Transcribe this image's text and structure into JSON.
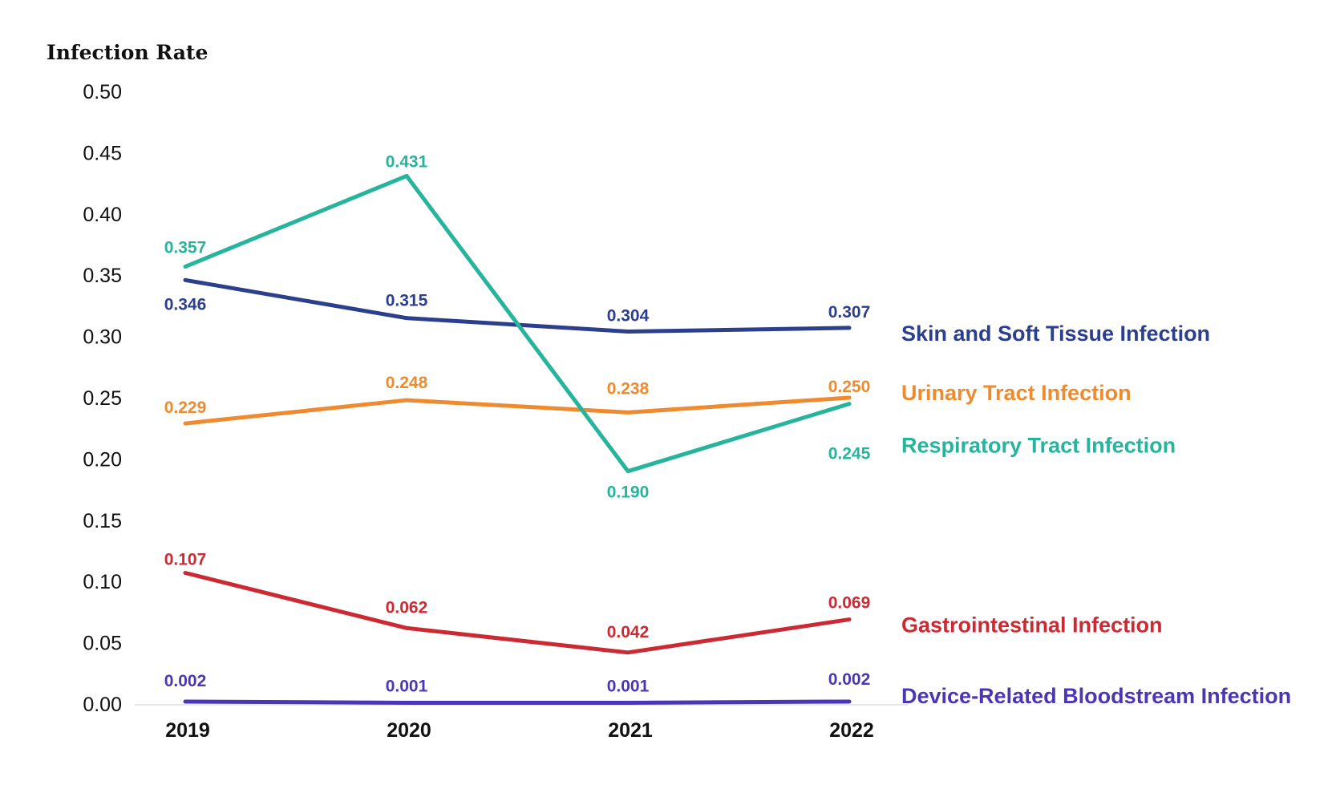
{
  "chart_data": {
    "type": "line",
    "title": "",
    "ylabel": "Infection Rate",
    "xlabel": "",
    "categories": [
      "2019",
      "2020",
      "2021",
      "2022"
    ],
    "ylim": [
      0,
      0.5
    ],
    "yticks": [
      "0.00",
      "0.05",
      "0.10",
      "0.15",
      "0.20",
      "0.25",
      "0.30",
      "0.35",
      "0.40",
      "0.45",
      "0.50"
    ],
    "grid": false,
    "legend": "inline-right",
    "series": [
      {
        "name": "Skin and Soft Tissue Infection",
        "color": "#2b3f8c",
        "values": [
          0.346,
          0.315,
          0.304,
          0.307
        ],
        "labels": [
          "0.346",
          "0.315",
          "0.304",
          "0.307"
        ]
      },
      {
        "name": "Urinary Tract Infection",
        "color": "#ee8a2f",
        "values": [
          0.229,
          0.248,
          0.238,
          0.25
        ],
        "labels": [
          "0.229",
          "0.248",
          "0.238",
          "0.250"
        ]
      },
      {
        "name": "Respiratory Tract Infection",
        "color": "#26b49c",
        "values": [
          0.357,
          0.431,
          0.19,
          0.245
        ],
        "labels": [
          "0.357",
          "0.431",
          "0.190",
          "0.245"
        ]
      },
      {
        "name": "Gastrointestinal Infection",
        "color": "#cc2a33",
        "values": [
          0.107,
          0.062,
          0.042,
          0.069
        ],
        "labels": [
          "0.107",
          "0.062",
          "0.042",
          "0.069"
        ]
      },
      {
        "name": "Device-Related Bloodstream Infection",
        "color": "#4b37b4",
        "values": [
          0.002,
          0.001,
          0.001,
          0.002
        ],
        "labels": [
          "0.002",
          "0.001",
          "0.001",
          "0.002"
        ]
      }
    ]
  }
}
